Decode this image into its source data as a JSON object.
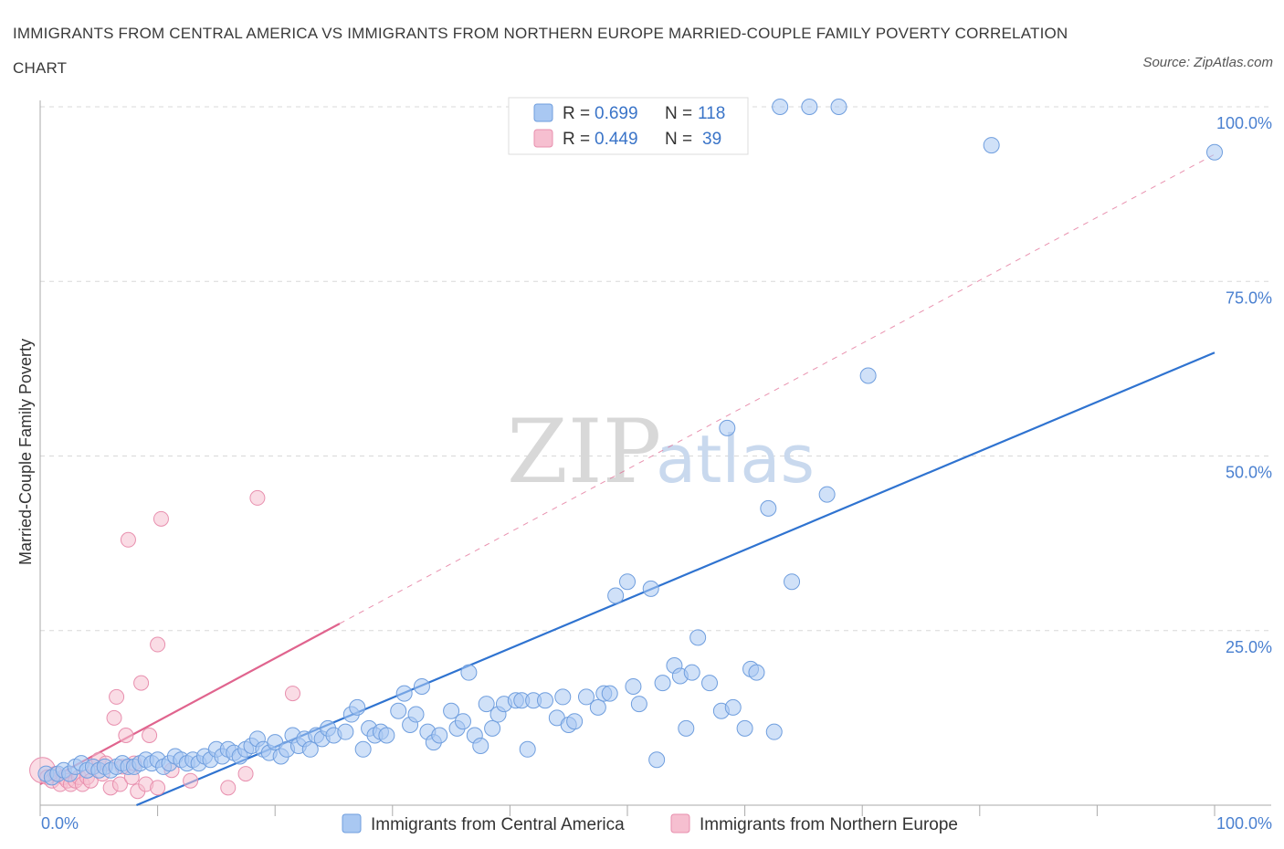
{
  "title": "IMMIGRANTS FROM CENTRAL AMERICA VS IMMIGRANTS FROM NORTHERN EUROPE MARRIED-COUPLE FAMILY POVERTY CORRELATION CHART",
  "source": "Source: ZipAtlas.com",
  "watermark": {
    "zip": "ZIP",
    "atlas": "atlas"
  },
  "colors": {
    "blue_fill": "#a9c8f2",
    "blue_stroke": "#6f9ede",
    "blue_line": "#2f73d0",
    "pink_fill": "#f6bfd0",
    "pink_stroke": "#e88fae",
    "pink_line": "#e0648e",
    "grid": "#d8d8d8",
    "tick_label": "#4a80d0"
  },
  "legend": {
    "rows": [
      {
        "r_label": "R =",
        "r_value": "0.699",
        "n_label": "N =",
        "n_value": "118"
      },
      {
        "r_label": "R =",
        "r_value": "0.449",
        "n_label": "N =",
        "n_value": "39"
      }
    ]
  },
  "chart_data": {
    "type": "scatter",
    "title": "IMMIGRANTS FROM CENTRAL AMERICA VS IMMIGRANTS FROM NORTHERN EUROPE MARRIED-COUPLE FAMILY POVERTY CORRELATION CHART",
    "xlabel": "",
    "ylabel": "Married-Couple Family Poverty",
    "xlim": [
      0,
      100
    ],
    "ylim": [
      0,
      100
    ],
    "x_tick_labels": [
      "0.0%",
      "100.0%"
    ],
    "y_ticks": [
      25,
      50,
      75,
      100
    ],
    "y_tick_labels": [
      "25.0%",
      "50.0%",
      "75.0%",
      "100.0%"
    ],
    "grid": true,
    "legend_position": "top-center",
    "series": [
      {
        "name": "Immigrants from Central America",
        "r": 0.699,
        "n": 118,
        "trend": {
          "x": [
            8.2,
            100
          ],
          "y": [
            0,
            64.8
          ]
        },
        "points": [
          [
            0.5,
            4.5
          ],
          [
            1.0,
            4.0
          ],
          [
            1.5,
            4.5
          ],
          [
            2.0,
            5.0
          ],
          [
            2.5,
            4.5
          ],
          [
            3.0,
            5.5
          ],
          [
            3.5,
            6.0
          ],
          [
            4.0,
            5.0
          ],
          [
            4.5,
            5.5
          ],
          [
            5.0,
            5.0
          ],
          [
            5.5,
            5.5
          ],
          [
            6.0,
            5.0
          ],
          [
            6.5,
            5.5
          ],
          [
            7.0,
            6.0
          ],
          [
            7.5,
            5.5
          ],
          [
            8.0,
            5.5
          ],
          [
            8.5,
            6.0
          ],
          [
            9.0,
            6.5
          ],
          [
            9.5,
            6.0
          ],
          [
            10.0,
            6.5
          ],
          [
            10.5,
            5.5
          ],
          [
            11.0,
            6.0
          ],
          [
            11.5,
            7.0
          ],
          [
            12.0,
            6.5
          ],
          [
            12.5,
            6.0
          ],
          [
            13.0,
            6.5
          ],
          [
            13.5,
            6.0
          ],
          [
            14.0,
            7.0
          ],
          [
            14.5,
            6.5
          ],
          [
            15.0,
            8.0
          ],
          [
            15.5,
            7.0
          ],
          [
            16.0,
            8.0
          ],
          [
            16.5,
            7.5
          ],
          [
            17.0,
            7.0
          ],
          [
            17.5,
            8.0
          ],
          [
            18.0,
            8.5
          ],
          [
            18.5,
            9.5
          ],
          [
            19.0,
            8.0
          ],
          [
            19.5,
            7.5
          ],
          [
            20.0,
            9.0
          ],
          [
            20.5,
            7.0
          ],
          [
            21.0,
            8.0
          ],
          [
            21.5,
            10.0
          ],
          [
            22.0,
            8.5
          ],
          [
            22.5,
            9.5
          ],
          [
            23.0,
            8.0
          ],
          [
            23.5,
            10.0
          ],
          [
            24.0,
            9.5
          ],
          [
            24.5,
            11.0
          ],
          [
            25.0,
            10.0
          ],
          [
            26.0,
            10.5
          ],
          [
            26.5,
            13.0
          ],
          [
            27.0,
            14.0
          ],
          [
            27.5,
            8.0
          ],
          [
            28.0,
            11.0
          ],
          [
            28.5,
            10.0
          ],
          [
            29.0,
            10.5
          ],
          [
            29.5,
            10.0
          ],
          [
            30.5,
            13.5
          ],
          [
            31.0,
            16.0
          ],
          [
            31.5,
            11.5
          ],
          [
            32.0,
            13.0
          ],
          [
            32.5,
            17.0
          ],
          [
            33.0,
            10.5
          ],
          [
            33.5,
            9.0
          ],
          [
            34.0,
            10.0
          ],
          [
            35.0,
            13.5
          ],
          [
            35.5,
            11.0
          ],
          [
            36.0,
            12.0
          ],
          [
            36.5,
            19.0
          ],
          [
            37.0,
            10.0
          ],
          [
            37.5,
            8.5
          ],
          [
            38.0,
            14.5
          ],
          [
            38.5,
            11.0
          ],
          [
            39.0,
            13.0
          ],
          [
            39.5,
            14.5
          ],
          [
            40.5,
            15.0
          ],
          [
            41.0,
            15.0
          ],
          [
            41.5,
            8.0
          ],
          [
            42.0,
            15.0
          ],
          [
            43.0,
            15.0
          ],
          [
            44.0,
            12.5
          ],
          [
            44.5,
            15.5
          ],
          [
            45.0,
            11.5
          ],
          [
            45.5,
            12.0
          ],
          [
            46.5,
            15.5
          ],
          [
            47.5,
            14.0
          ],
          [
            48.0,
            16.0
          ],
          [
            48.5,
            16.0
          ],
          [
            49.0,
            30.0
          ],
          [
            50.0,
            32.0
          ],
          [
            50.5,
            17.0
          ],
          [
            51.0,
            14.5
          ],
          [
            52.0,
            31.0
          ],
          [
            52.5,
            6.5
          ],
          [
            53.0,
            17.5
          ],
          [
            54.0,
            20.0
          ],
          [
            54.5,
            18.5
          ],
          [
            55.0,
            11.0
          ],
          [
            55.5,
            19.0
          ],
          [
            56.0,
            24.0
          ],
          [
            57.0,
            17.5
          ],
          [
            58.0,
            13.5
          ],
          [
            58.5,
            54.0
          ],
          [
            59.0,
            14.0
          ],
          [
            60.0,
            11.0
          ],
          [
            60.5,
            19.5
          ],
          [
            61.0,
            19.0
          ],
          [
            62.0,
            42.5
          ],
          [
            62.5,
            10.5
          ],
          [
            63.0,
            100.0
          ],
          [
            64.0,
            32.0
          ],
          [
            65.5,
            100.0
          ],
          [
            67.0,
            44.5
          ],
          [
            68.0,
            100.0
          ],
          [
            70.5,
            61.5
          ],
          [
            81.0,
            94.5
          ],
          [
            100.0,
            93.5
          ]
        ]
      },
      {
        "name": "Immigrants from Northern Europe",
        "r": 0.449,
        "n": 39,
        "trend": {
          "x": [
            0,
            25.5
          ],
          "y": [
            3.0,
            26.0
          ]
        },
        "points": [
          [
            0.2,
            5.0
          ],
          [
            0.6,
            4.0
          ],
          [
            1.0,
            3.5
          ],
          [
            1.3,
            4.5
          ],
          [
            1.7,
            3.0
          ],
          [
            2.0,
            4.0
          ],
          [
            2.3,
            3.5
          ],
          [
            2.6,
            3.0
          ],
          [
            3.0,
            3.5
          ],
          [
            3.3,
            4.0
          ],
          [
            3.6,
            3.0
          ],
          [
            4.0,
            4.0
          ],
          [
            4.3,
            3.5
          ],
          [
            4.6,
            5.5
          ],
          [
            5.0,
            6.5
          ],
          [
            5.3,
            4.5
          ],
          [
            5.6,
            6.0
          ],
          [
            6.0,
            2.5
          ],
          [
            6.3,
            12.5
          ],
          [
            6.5,
            15.5
          ],
          [
            6.8,
            3.0
          ],
          [
            7.0,
            5.5
          ],
          [
            7.3,
            10.0
          ],
          [
            7.5,
            38.0
          ],
          [
            7.8,
            4.0
          ],
          [
            8.0,
            6.0
          ],
          [
            8.3,
            2.0
          ],
          [
            8.6,
            17.5
          ],
          [
            9.0,
            3.0
          ],
          [
            9.3,
            10.0
          ],
          [
            10.0,
            2.5
          ],
          [
            10.3,
            41.0
          ],
          [
            10.0,
            23.0
          ],
          [
            11.2,
            5.0
          ],
          [
            12.8,
            3.5
          ],
          [
            16.0,
            2.5
          ],
          [
            17.5,
            4.5
          ],
          [
            18.5,
            44.0
          ],
          [
            21.5,
            16.0
          ]
        ]
      }
    ]
  }
}
